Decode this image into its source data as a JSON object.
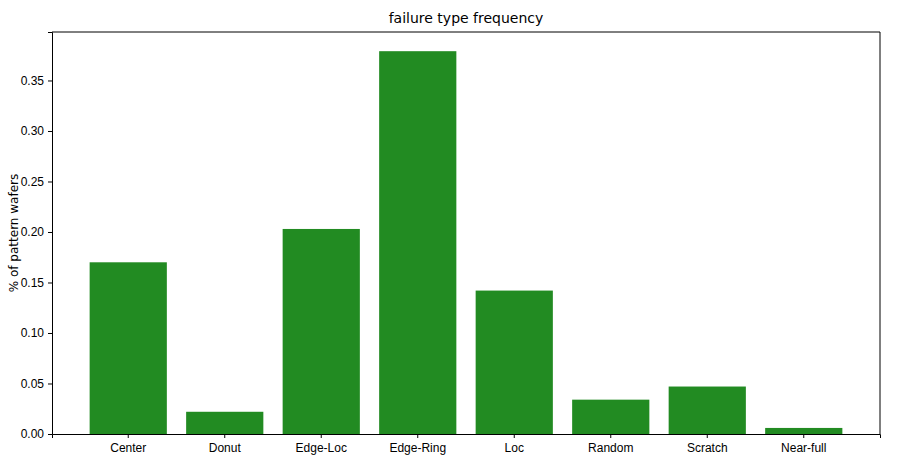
{
  "chart_data": {
    "type": "bar",
    "title": "failure type frequency",
    "y_label": "% of pattern wafers",
    "categories": [
      "Center",
      "Donut",
      "Edge-Loc",
      "Edge-Ring",
      "Loc",
      "Random",
      "Scratch",
      "Near-full"
    ],
    "values": [
      0.17,
      0.022,
      0.203,
      0.379,
      0.142,
      0.034,
      0.047,
      0.006
    ],
    "color": "#228b22",
    "ylim": [
      0,
      0.398
    ],
    "yticks": [
      {
        "value": 0,
        "label": "0.00"
      },
      0.05,
      {
        "value": 0.1,
        "label": "0.10"
      },
      0.15,
      {
        "value": 0.2,
        "label": "0.20"
      },
      0.25,
      {
        "value": 0.3,
        "label": "0.30"
      },
      0.35
    ],
    "grid": false
  }
}
